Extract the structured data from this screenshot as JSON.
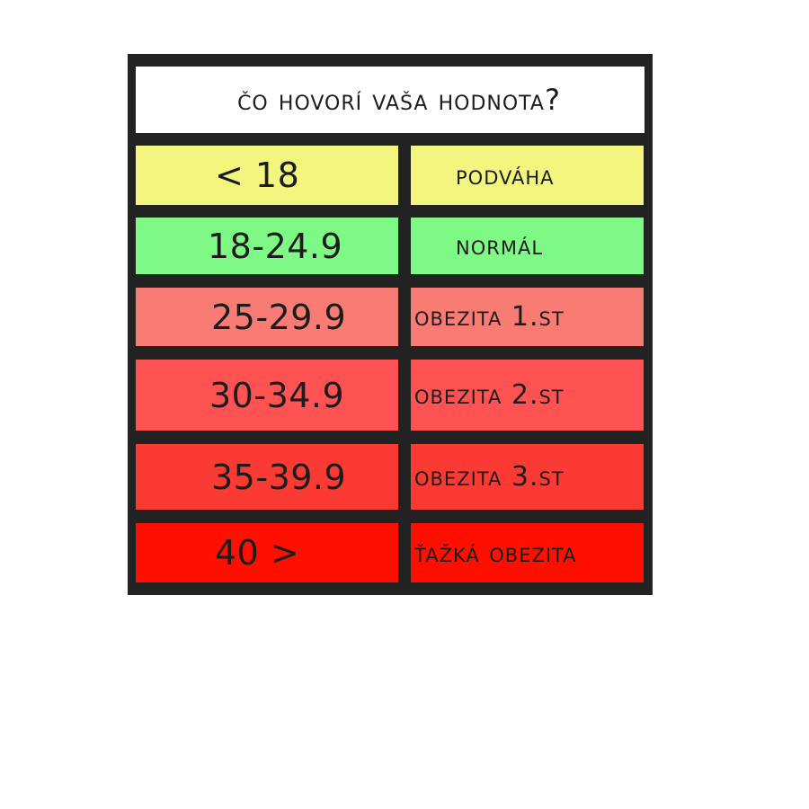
{
  "title": "čo hovorí Vaša hodnota?",
  "rows": [
    {
      "range": "< 18",
      "category": "podváha",
      "color": "#f3f57f"
    },
    {
      "range": "18-24.9",
      "category": "normál",
      "color": "#7ff986"
    },
    {
      "range": "25-29.9",
      "category": "obezita 1.st",
      "color": "#f87b74"
    },
    {
      "range": "30-34.9",
      "category": "obezita 2.st",
      "color": "#fe5352"
    },
    {
      "range": "35-39.9",
      "category": "obezita 3.st",
      "color": "#fb3b33"
    },
    {
      "range": "40 >",
      "category": "ťažká obezita",
      "color": "#ff0f00"
    }
  ],
  "colors": {
    "frame": "#222222",
    "text": "#1c1c1c",
    "title_background": "#ffffff"
  }
}
